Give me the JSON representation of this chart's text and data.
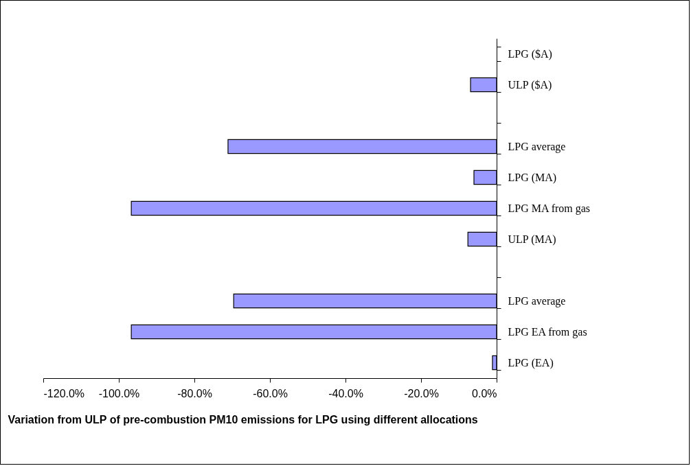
{
  "chart_data": {
    "type": "bar",
    "orientation": "horizontal",
    "xlabel": "Variation from ULP of  pre-combustion PM10 emissions for LPG using different allocations",
    "categories": [
      "LPG ($A)",
      "ULP ($A)",
      null,
      "LPG average",
      "LPG (MA)",
      "LPG MA from gas",
      "ULP (MA)",
      null,
      "LPG average",
      "LPG EA from gas",
      "LPG (EA)"
    ],
    "values": [
      null,
      -6.9,
      null,
      -71.1,
      -6.0,
      -96.7,
      -7.6,
      null,
      -69.6,
      -96.7,
      -1.1
    ],
    "color": "#9999ff",
    "xlim": [
      -120,
      0
    ],
    "xticks": [
      {
        "value": -120,
        "label": "-120.0%"
      },
      {
        "value": -100,
        "label": "-100.0%"
      },
      {
        "value": -80,
        "label": "-80.0%"
      },
      {
        "value": -60,
        "label": "-60.0%"
      },
      {
        "value": -40,
        "label": "-40.0%"
      },
      {
        "value": -20,
        "label": "-20.0%"
      },
      {
        "value": 0,
        "label": "0.0%"
      }
    ],
    "grid": false
  }
}
